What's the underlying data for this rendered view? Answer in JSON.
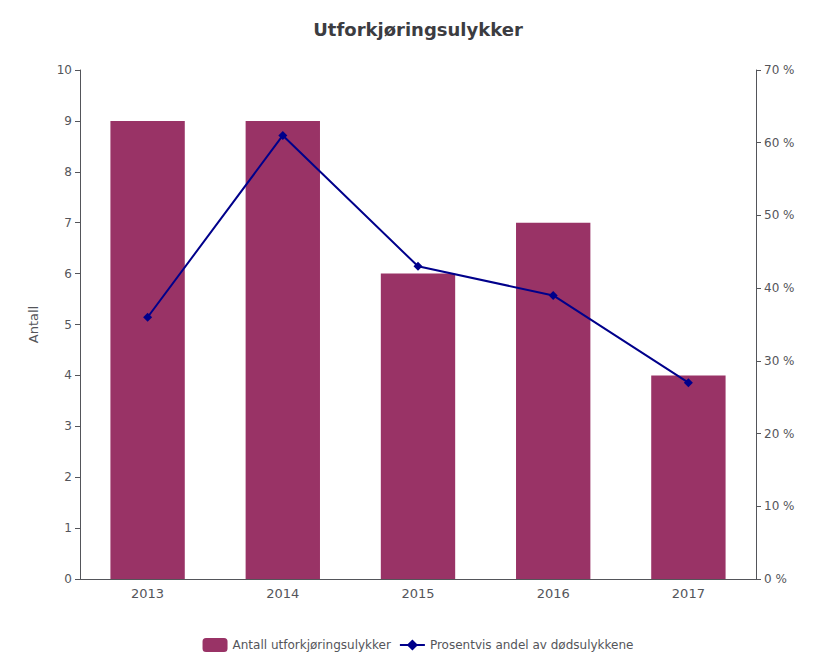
{
  "chart_data": {
    "type": "bar",
    "title": "Utforkjøringsulykker",
    "categories": [
      "2013",
      "2014",
      "2015",
      "2016",
      "2017"
    ],
    "series": [
      {
        "name": "Antall utforkjøringsulykker",
        "type": "bar",
        "color": "#993366",
        "values": [
          9,
          9,
          6,
          7,
          4
        ]
      },
      {
        "name": "Prosentvis andel av dødsulykkene",
        "type": "line",
        "color": "#00008B",
        "marker": "diamond",
        "axis": "y2",
        "values": [
          36,
          61,
          43,
          39,
          27
        ]
      }
    ],
    "ylabel": "Antall",
    "ylim": [
      0,
      10
    ],
    "yticks": [
      0,
      1,
      2,
      3,
      4,
      5,
      6,
      7,
      8,
      9,
      10
    ],
    "y2lim": [
      0,
      70
    ],
    "y2ticks": [
      {
        "value": 0,
        "label": "0 %"
      },
      {
        "value": 10,
        "label": "10 %"
      },
      {
        "value": 20,
        "label": "20 %"
      },
      {
        "value": 30,
        "label": "30 %"
      },
      {
        "value": 40,
        "label": "40 %"
      },
      {
        "value": 50,
        "label": "50 %"
      },
      {
        "value": 60,
        "label": "60 %"
      },
      {
        "value": 70,
        "label": "70 %"
      }
    ],
    "grid": false,
    "legend": "bottom"
  }
}
